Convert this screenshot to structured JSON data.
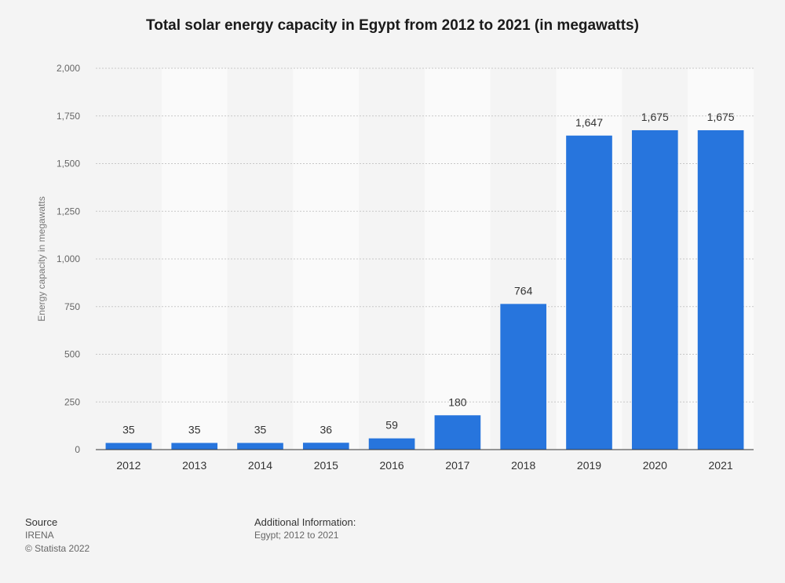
{
  "chart_data": {
    "type": "bar",
    "title": "Total solar energy capacity in Egypt from 2012 to 2021 (in megawatts)",
    "xlabel": "",
    "ylabel": "Energy capacity in megawatts",
    "categories": [
      "2012",
      "2013",
      "2014",
      "2015",
      "2016",
      "2017",
      "2018",
      "2019",
      "2020",
      "2021"
    ],
    "values": [
      35,
      35,
      35,
      36,
      59,
      180,
      764,
      1647,
      1675,
      1675
    ],
    "value_labels": [
      "35",
      "35",
      "35",
      "36",
      "59",
      "180",
      "764",
      "1,647",
      "1,675",
      "1,675"
    ],
    "ylim": [
      0,
      2000
    ],
    "yticks": [
      0,
      250,
      500,
      750,
      1000,
      1250,
      1500,
      1750,
      2000
    ],
    "ytick_labels": [
      "0",
      "250",
      "500",
      "750",
      "1,000",
      "1,250",
      "1,500",
      "1,750",
      "2,000"
    ],
    "grid": true,
    "bar_color": "#2775dd"
  },
  "footer": {
    "source_heading": "Source",
    "source_name": "IRENA",
    "copyright": "© Statista 2022",
    "info_heading": "Additional Information:",
    "info_text": "Egypt; 2012 to 2021"
  }
}
